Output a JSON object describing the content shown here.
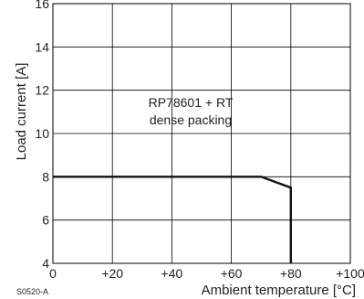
{
  "chart_data": {
    "type": "line",
    "title": "",
    "xlabel": "Ambient temperature [°C]",
    "ylabel": "Load current [A]",
    "xlim": [
      0,
      100
    ],
    "ylim": [
      4,
      16
    ],
    "grid": true,
    "x_ticks": [
      {
        "value": 0,
        "label": "0"
      },
      {
        "value": 20,
        "label": "+20"
      },
      {
        "value": 40,
        "label": "+40"
      },
      {
        "value": 60,
        "label": "+60"
      },
      {
        "value": 80,
        "label": "+80"
      },
      {
        "value": 100,
        "label": "+100"
      }
    ],
    "y_ticks": [
      {
        "value": 4,
        "label": "4"
      },
      {
        "value": 6,
        "label": "6"
      },
      {
        "value": 8,
        "label": "8"
      },
      {
        "value": 10,
        "label": "10"
      },
      {
        "value": 12,
        "label": "12"
      },
      {
        "value": 14,
        "label": "14"
      },
      {
        "value": 16,
        "label": "16"
      }
    ],
    "series": [
      {
        "x": [
          0,
          70,
          80,
          80
        ],
        "y": [
          8,
          8,
          7.5,
          4
        ]
      }
    ],
    "annotation": [
      "RP78601 + RT",
      "dense packing"
    ],
    "figure_code": "S0520-A",
    "colors": {
      "line": "#111111",
      "grid": "#000000",
      "text": "#222222"
    }
  }
}
